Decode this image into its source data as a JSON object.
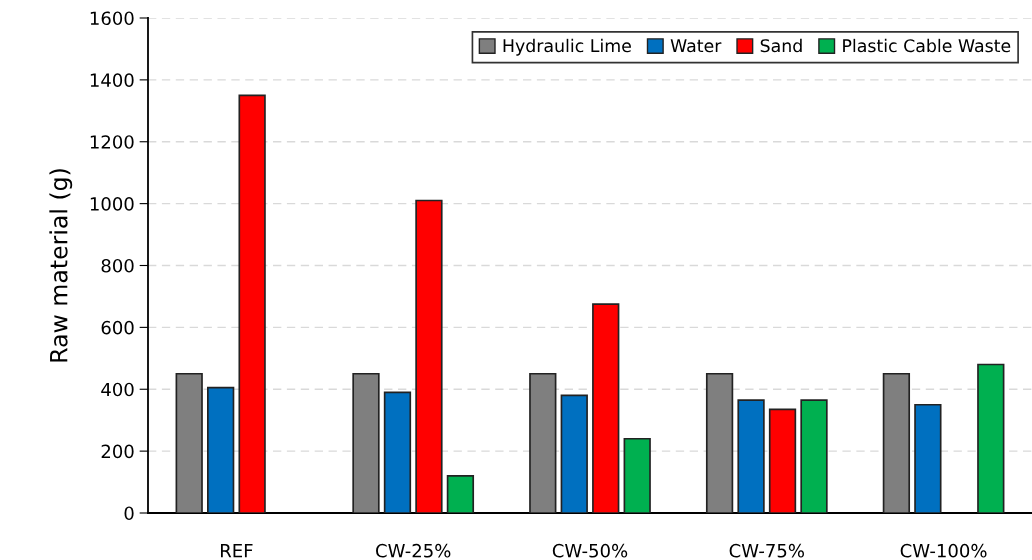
{
  "chart_data": {
    "type": "bar",
    "ylabel": "Raw material (g)",
    "categories": [
      "REF",
      "CW-25%",
      "CW-50%",
      "CW-75%",
      "CW-100%"
    ],
    "series": [
      {
        "name": "Hydraulic Lime",
        "color": "#7f7f7f",
        "values": [
          450,
          450,
          450,
          450,
          450
        ]
      },
      {
        "name": "Water",
        "color": "#0070c0",
        "values": [
          405,
          390,
          380,
          365,
          350
        ]
      },
      {
        "name": "Sand",
        "color": "#ff0000",
        "values": [
          1350,
          1010,
          675,
          335,
          null
        ]
      },
      {
        "name": "Plastic Cable Waste",
        "color": "#00b050",
        "values": [
          null,
          120,
          240,
          365,
          480
        ]
      }
    ],
    "ylim": [
      0,
      1600
    ],
    "yticks": [
      0,
      200,
      400,
      600,
      800,
      1000,
      1200,
      1400,
      1600
    ],
    "grid": "y",
    "legend": "top right"
  }
}
